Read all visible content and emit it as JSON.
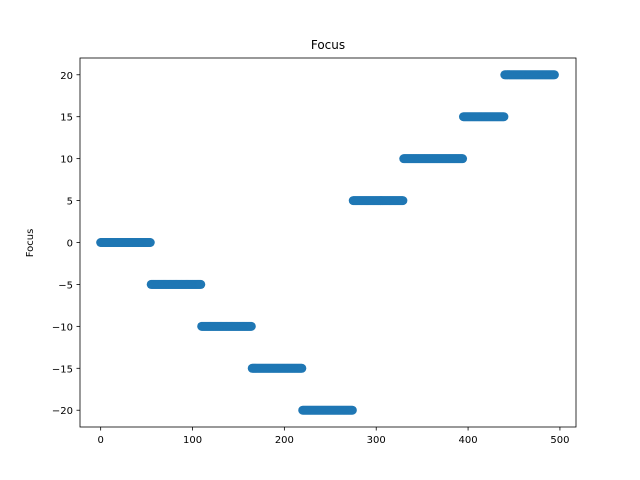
{
  "chart_data": {
    "type": "scatter",
    "title": "Focus",
    "xlabel": "",
    "ylabel": "Focus",
    "xlim": [
      -22.5,
      517.5
    ],
    "ylim": [
      -22,
      22
    ],
    "xticks": [
      0,
      100,
      200,
      300,
      400,
      500
    ],
    "yticks": [
      -20,
      -15,
      -10,
      -5,
      0,
      5,
      10,
      15,
      20
    ],
    "xtick_labels": [
      "0",
      "100",
      "200",
      "300",
      "400",
      "500"
    ],
    "ytick_labels": [
      "−20",
      "−15",
      "−10",
      "−5",
      "0",
      "5",
      "10",
      "15",
      "20"
    ],
    "grid": false,
    "marker_color": "#1f77b4",
    "segments": [
      {
        "y": 0,
        "x_start": 0,
        "x_end": 54
      },
      {
        "y": -5,
        "x_start": 55,
        "x_end": 109
      },
      {
        "y": -10,
        "x_start": 110,
        "x_end": 164
      },
      {
        "y": -15,
        "x_start": 165,
        "x_end": 219
      },
      {
        "y": -20,
        "x_start": 220,
        "x_end": 274
      },
      {
        "y": 5,
        "x_start": 275,
        "x_end": 329
      },
      {
        "y": 10,
        "x_start": 330,
        "x_end": 394
      },
      {
        "y": 15,
        "x_start": 395,
        "x_end": 439
      },
      {
        "y": 20,
        "x_start": 440,
        "x_end": 494
      }
    ]
  }
}
